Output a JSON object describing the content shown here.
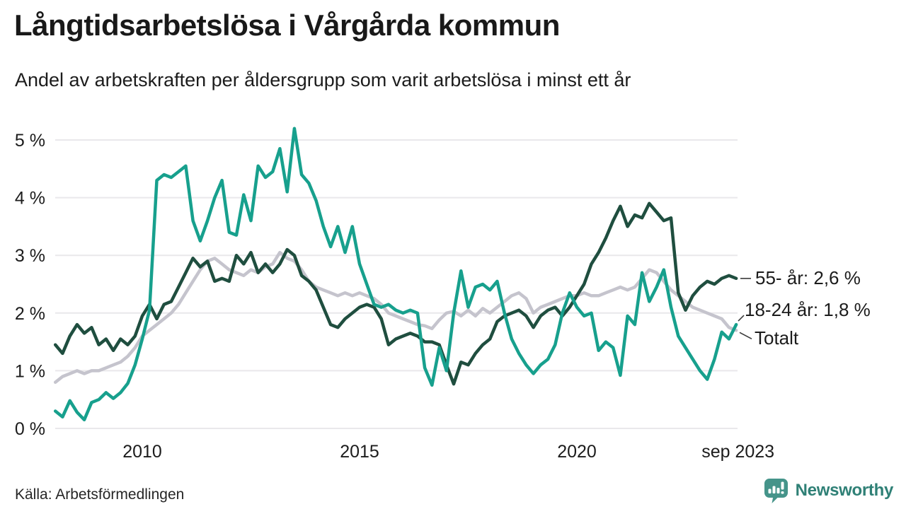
{
  "header": {
    "title": "Långtidsarbetslösa i Vårgårda kommun",
    "subtitle": "Andel av arbetskraften per åldersgrupp som varit arbetslösa i minst ett år"
  },
  "footer": {
    "source": "Källa: Arbetsförmedlingen",
    "brand": "Newsworthy",
    "logo_icon": "bar-chart-speech-bubble"
  },
  "colors": {
    "teal": "#17a08d",
    "dark_green": "#1f4e3f",
    "gray": "#c5c4cd",
    "gridline": "#e9e8eb",
    "text": "#1c1c1c",
    "connector": "#3a3a3a",
    "brand_icon": "#45948a",
    "brand_text": "#2f8076"
  },
  "chart_data": {
    "type": "line",
    "title": "Långtidsarbetslösa i Vårgårda kommun",
    "subtitle": "Andel av arbetskraften per åldersgrupp som varit arbetslösa i minst ett år",
    "xlabel": "",
    "ylabel": "",
    "unit": "%",
    "ylim": [
      0,
      5.45
    ],
    "grid": "horizontal",
    "legend_position": "right-end-labels",
    "x_start": "2008-01",
    "x_end": "2023-09",
    "x_step_months": 2,
    "x_ticks": [
      {
        "label": "2010",
        "year": 2010
      },
      {
        "label": "2015",
        "year": 2015
      },
      {
        "label": "2020",
        "year": 2020
      },
      {
        "label": "sep 2023",
        "year": 2023.708
      }
    ],
    "y_ticks": [
      {
        "value": 0,
        "label": "0 %"
      },
      {
        "value": 1,
        "label": "1 %"
      },
      {
        "value": 2,
        "label": "2 %"
      },
      {
        "value": 3,
        "label": "3 %"
      },
      {
        "value": 4,
        "label": "4 %"
      },
      {
        "value": 5,
        "label": "5 %"
      }
    ],
    "series": [
      {
        "name": "Totalt",
        "slug": "totalt",
        "color_key": "gray",
        "end_label": "Totalt",
        "end_value": 1.7,
        "values": [
          0.8,
          0.9,
          0.95,
          1.0,
          0.95,
          1.0,
          1.0,
          1.05,
          1.1,
          1.15,
          1.25,
          1.4,
          1.6,
          1.7,
          1.8,
          1.9,
          2.0,
          2.15,
          2.35,
          2.55,
          2.75,
          2.9,
          2.95,
          2.85,
          2.75,
          2.7,
          2.65,
          2.75,
          2.7,
          2.8,
          2.85,
          3.05,
          2.95,
          2.9,
          2.75,
          2.55,
          2.45,
          2.4,
          2.35,
          2.3,
          2.35,
          2.3,
          2.35,
          2.3,
          2.25,
          2.15,
          2.0,
          1.95,
          1.9,
          1.85,
          1.8,
          1.78,
          1.73,
          1.88,
          2.0,
          2.03,
          1.95,
          2.05,
          1.95,
          2.08,
          2.0,
          2.1,
          2.2,
          2.3,
          2.35,
          2.25,
          2.0,
          2.1,
          2.15,
          2.2,
          2.25,
          2.3,
          2.3,
          2.35,
          2.3,
          2.3,
          2.35,
          2.4,
          2.45,
          2.4,
          2.45,
          2.6,
          2.75,
          2.7,
          2.55,
          2.4,
          2.3,
          2.2,
          2.1,
          2.05,
          2.0,
          1.95,
          1.9,
          1.75,
          1.7
        ]
      },
      {
        "name": "55- år",
        "slug": "55-ar",
        "color_key": "dark_green",
        "end_label": "55- år: 2,6 %",
        "end_value": 2.6,
        "values": [
          1.45,
          1.3,
          1.6,
          1.8,
          1.65,
          1.75,
          1.45,
          1.55,
          1.35,
          1.55,
          1.45,
          1.6,
          1.95,
          2.15,
          1.9,
          2.15,
          2.2,
          2.45,
          2.7,
          2.95,
          2.8,
          2.9,
          2.55,
          2.6,
          2.55,
          3.0,
          2.85,
          3.05,
          2.7,
          2.85,
          2.7,
          2.85,
          3.1,
          3.0,
          2.65,
          2.55,
          2.4,
          2.1,
          1.8,
          1.75,
          1.9,
          2.0,
          2.1,
          2.15,
          2.1,
          1.9,
          1.45,
          1.55,
          1.6,
          1.65,
          1.6,
          1.5,
          1.5,
          1.45,
          1.1,
          0.77,
          1.15,
          1.1,
          1.3,
          1.45,
          1.55,
          1.85,
          1.95,
          2.0,
          2.05,
          1.95,
          1.75,
          1.95,
          2.05,
          2.1,
          1.95,
          2.1,
          2.3,
          2.5,
          2.85,
          3.05,
          3.3,
          3.6,
          3.85,
          3.5,
          3.7,
          3.65,
          3.9,
          3.75,
          3.6,
          3.65,
          2.35,
          2.05,
          2.3,
          2.45,
          2.55,
          2.5,
          2.6,
          2.65,
          2.6
        ]
      },
      {
        "name": "18-24 år",
        "slug": "18-24-ar",
        "color_key": "teal",
        "end_label": "18-24 år: 1,8 %",
        "end_value": 1.8,
        "values": [
          0.3,
          0.2,
          0.48,
          0.28,
          0.15,
          0.45,
          0.5,
          0.62,
          0.52,
          0.62,
          0.78,
          1.1,
          1.55,
          2.05,
          4.3,
          4.4,
          4.35,
          4.45,
          4.55,
          3.6,
          3.25,
          3.6,
          4.0,
          4.3,
          3.4,
          3.35,
          4.05,
          3.6,
          4.55,
          4.35,
          4.45,
          4.85,
          4.1,
          5.2,
          4.4,
          4.25,
          3.95,
          3.5,
          3.15,
          3.5,
          3.05,
          3.5,
          2.85,
          2.5,
          2.15,
          2.1,
          2.15,
          2.05,
          2.0,
          2.05,
          2.0,
          1.05,
          0.75,
          1.4,
          1.0,
          2.0,
          2.73,
          2.1,
          2.45,
          2.5,
          2.4,
          2.55,
          2.0,
          1.55,
          1.3,
          1.1,
          0.95,
          1.1,
          1.2,
          1.45,
          2.0,
          2.35,
          2.1,
          1.95,
          2.0,
          1.35,
          1.5,
          1.4,
          0.92,
          1.95,
          1.8,
          2.7,
          2.2,
          2.45,
          2.75,
          2.1,
          1.6,
          1.4,
          1.2,
          1.0,
          0.85,
          1.2,
          1.67,
          1.55,
          1.8
        ]
      }
    ]
  }
}
